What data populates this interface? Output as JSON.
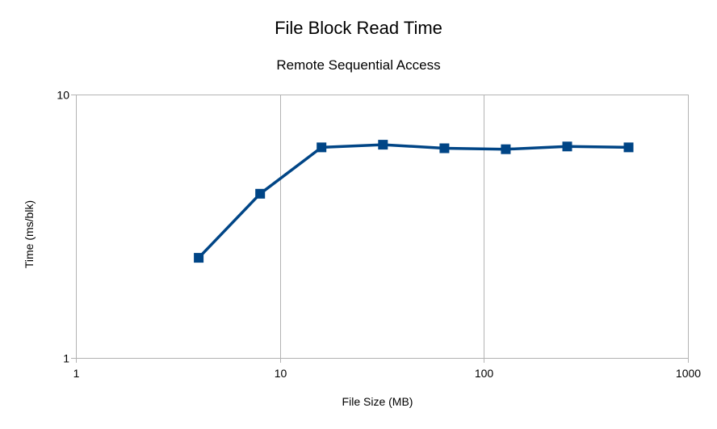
{
  "chart_data": {
    "type": "line",
    "title": "File Block Read Time",
    "subtitle": "Remote Sequential Access",
    "xlabel": "File Size (MB)",
    "ylabel": "Time (ms/blk)",
    "xscale": "log",
    "yscale": "log",
    "xlim": [
      1,
      1000
    ],
    "ylim": [
      1,
      10
    ],
    "x_ticks": [
      "1",
      "10",
      "100",
      "1000"
    ],
    "y_ticks": [
      "1",
      "10"
    ],
    "grid": "major x and y",
    "legend": "none",
    "series": [
      {
        "color": "#004586",
        "marker": "square",
        "x": [
          4,
          8,
          16,
          32,
          64,
          128,
          256,
          512
        ],
        "y": [
          2.4,
          4.2,
          6.3,
          6.45,
          6.25,
          6.2,
          6.35,
          6.3
        ]
      }
    ]
  }
}
